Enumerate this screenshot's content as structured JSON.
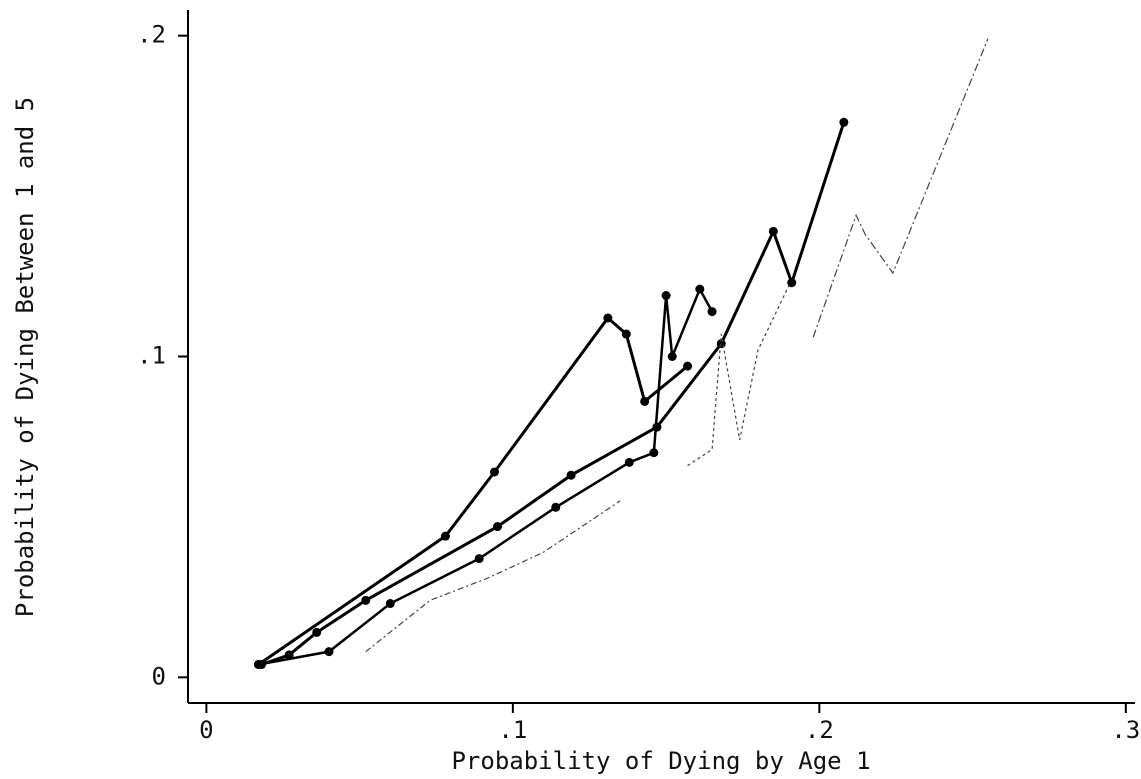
{
  "chart_data": {
    "type": "line",
    "xlabel": "Probability of Dying by Age 1",
    "ylabel": "Probability of Dying Between 1 and 5",
    "xlim": [
      -0.006,
      0.303
    ],
    "ylim": [
      -0.008,
      0.208
    ],
    "xticks": [
      0,
      {
        "value": 0.1,
        "label": ".1"
      },
      {
        "value": 0.2,
        "label": ".2"
      },
      {
        "value": 0.3,
        "label": ".3"
      }
    ],
    "yticks": [
      0,
      {
        "value": 0.1,
        "label": ".1"
      },
      {
        "value": 0.2,
        "label": ".2"
      }
    ],
    "series": [
      {
        "color": "#000000",
        "width": 3,
        "dash": "none",
        "markers": true,
        "x": [
          0.017,
          0.078,
          0.094,
          0.131,
          0.137,
          0.143,
          0.157
        ],
        "values": [
          0.004,
          0.044,
          0.064,
          0.112,
          0.107,
          0.086,
          0.097
        ]
      },
      {
        "color": "#000000",
        "width": 3,
        "dash": "none",
        "markers": true,
        "x": [
          0.018,
          0.027,
          0.036,
          0.052,
          0.095,
          0.119,
          0.147,
          0.168,
          0.185,
          0.191,
          0.208
        ],
        "values": [
          0.004,
          0.007,
          0.014,
          0.024,
          0.047,
          0.063,
          0.078,
          0.104,
          0.139,
          0.123,
          0.173
        ]
      },
      {
        "color": "#000000",
        "width": 2.5,
        "dash": "none",
        "markers": true,
        "x": [
          0.017,
          0.04,
          0.06,
          0.089,
          0.114,
          0.138,
          0.146,
          0.15,
          0.152,
          0.161,
          0.165
        ],
        "values": [
          0.004,
          0.008,
          0.023,
          0.037,
          0.053,
          0.067,
          0.07,
          0.119,
          0.1,
          0.121,
          0.114
        ]
      },
      {
        "color": "#444444",
        "width": 1.2,
        "dash": "8 3 2 3",
        "markers": false,
        "x": [
          0.198,
          0.212,
          0.215,
          0.224,
          0.255
        ],
        "values": [
          0.106,
          0.144,
          0.138,
          0.126,
          0.199
        ]
      },
      {
        "color": "#444444",
        "width": 1.2,
        "dash": "6 3 2 3",
        "markers": false,
        "x": [
          0.052,
          0.073,
          0.092,
          0.11,
          0.135
        ],
        "values": [
          0.008,
          0.024,
          0.031,
          0.039,
          0.055
        ]
      },
      {
        "color": "#444444",
        "width": 1.2,
        "dash": "3 3",
        "markers": false,
        "x": [
          0.157,
          0.165,
          0.168,
          0.174,
          0.18,
          0.19
        ],
        "values": [
          0.066,
          0.071,
          0.107,
          0.074,
          0.102,
          0.122
        ]
      }
    ]
  }
}
